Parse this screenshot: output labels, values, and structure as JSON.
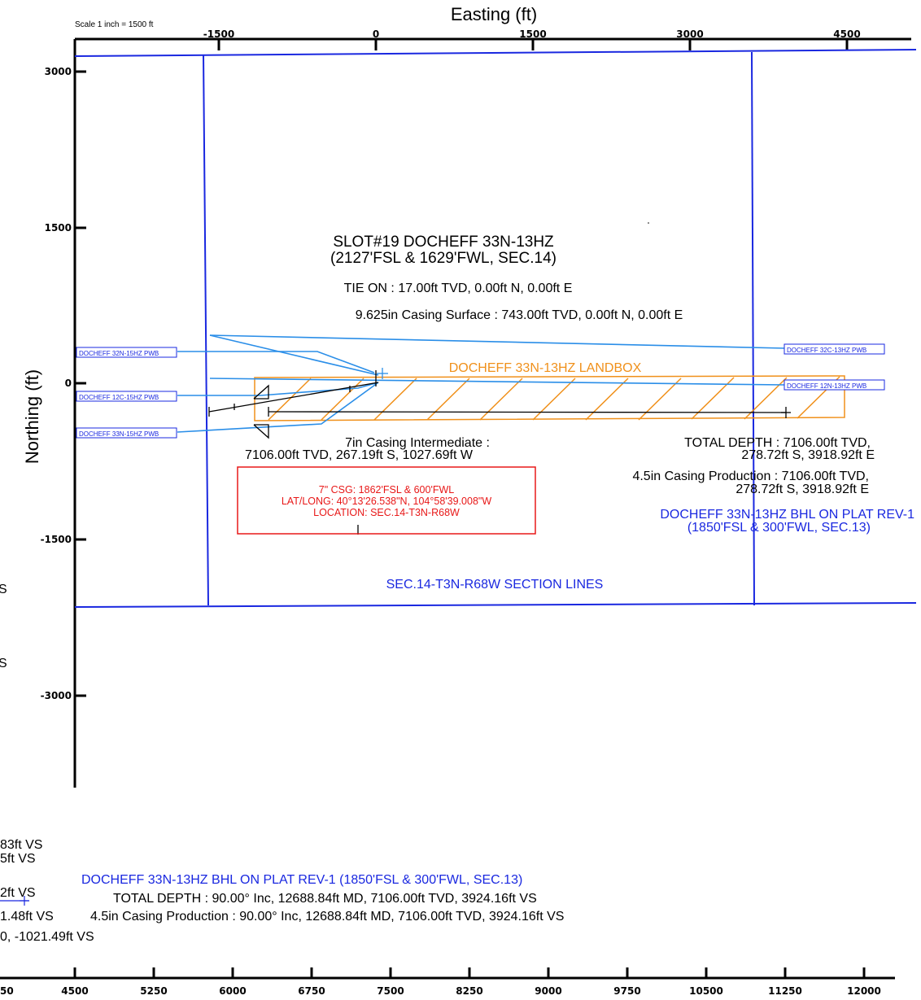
{
  "scale_text": "Scale 1 inch = 1500 ft",
  "axis_title_x": "Easting (ft)",
  "axis_title_y": "Northing (ft)",
  "top_ticks": [
    "-1500",
    "0",
    "1500",
    "3000",
    "4500"
  ],
  "left_ticks": [
    "3000",
    "1500",
    "0",
    "-1500",
    "-3000"
  ],
  "bottom_ticks": [
    "50",
    "4500",
    "5250",
    "6000",
    "6750",
    "7500",
    "8250",
    "9000",
    "9750",
    "10500",
    "11250",
    "12000"
  ],
  "labels": {
    "slot_title": "SLOT#19 DOCHEFF 33N-13HZ",
    "slot_subtitle": "(2127'FSL & 1629'FWL, SEC.14)",
    "tie_on": "TIE ON : 17.00ft TVD, 0.00ft N, 0.00ft E",
    "surface_casing": "9.625in Casing Surface : 743.00ft TVD, 0.00ft N, 0.00ft E",
    "landbox": "DOCHEFF 33N-13HZ LANDBOX",
    "int_casing_1": "7in Casing Intermediate :",
    "int_casing_2": "7106.00ft TVD, 267.19ft S, 1027.69ft W",
    "td_1": "TOTAL DEPTH : 7106.00ft TVD,",
    "td_2": "278.72ft S, 3918.92ft E",
    "prod_1": "4.5in Casing Production : 7106.00ft TVD,",
    "prod_2": "278.72ft S, 3918.92ft E",
    "bhl_1": "DOCHEFF 33N-13HZ BHL ON PLAT REV-1",
    "bhl_2": "(1850'FSL & 300'FWL, SEC.13)",
    "section_lines": "SEC.14-T3N-R68W SECTION LINES",
    "csg_1": "7\" CSG: 1862'FSL & 600'FWL",
    "csg_2": "LAT/LONG: 40°13'26.538\"N, 104°58'39.008\"W",
    "csg_3": "LOCATION: SEC.14-T3N-R68W"
  },
  "well_tags": {
    "w32n": "DOCHEFF 32N-15HZ PWB",
    "w12c": "DOCHEFF 12C-15HZ PWB",
    "w33n": "DOCHEFF 33N-15HZ PWB",
    "w32c": "DOCHEFF 32C-13HZ PWB",
    "w12n": "DOCHEFF 12N-13HZ PWB"
  },
  "bottom_panel": {
    "left_1": "83ft VS",
    "left_2": "5ft VS",
    "left_3": "2ft VS",
    "left_4": "1.48ft VS",
    "left_5": "0, -1021.49ft VS",
    "left_s1": "S",
    "left_s2": "S",
    "bhl": "DOCHEFF 33N-13HZ BHL ON PLAT REV-1 (1850'FSL & 300'FWL, SEC.13)",
    "td": "TOTAL DEPTH : 90.00° Inc, 12688.84ft MD, 7106.00ft TVD, 3924.16ft VS",
    "prod": "4.5in Casing Production : 90.00° Inc, 12688.84ft MD, 7106.00ft TVD, 3924.16ft VS"
  },
  "colors": {
    "section_line": "#1a28e0",
    "offset_well": "#2a8ee8",
    "landbox": "#f0901a",
    "annotation_red": "#e81818",
    "text_blue": "#1a28e0",
    "axis": "#000000"
  }
}
